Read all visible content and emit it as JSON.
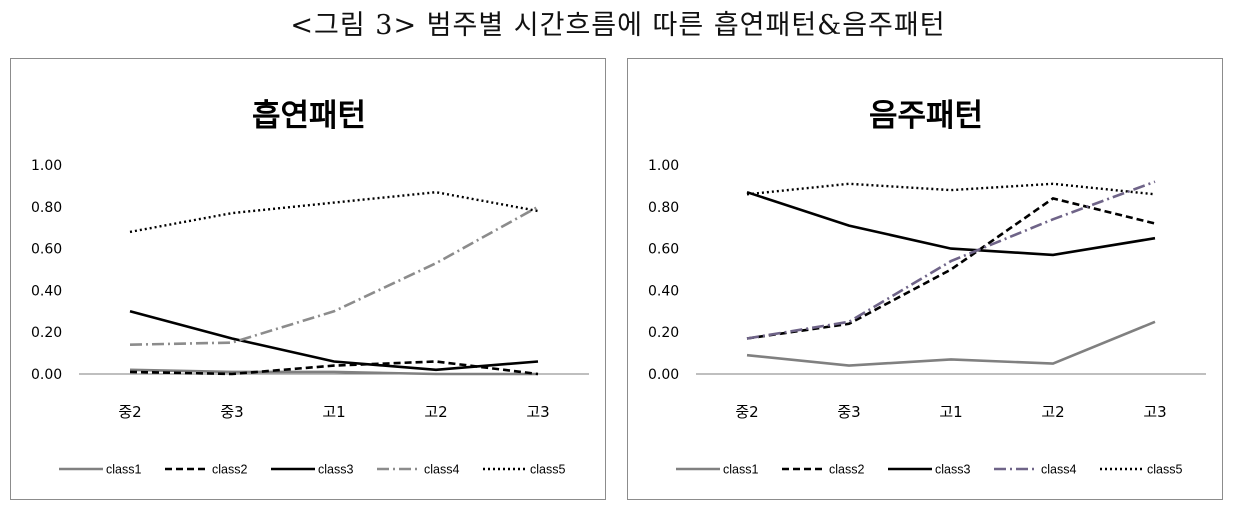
{
  "figure_title": "<그림 3> 범주별 시간흐름에 따른 흡연패턴&음주패턴",
  "chart_data": [
    {
      "type": "line",
      "title": "흡연패턴",
      "xlabel": "",
      "ylabel": "",
      "categories": [
        "중2",
        "중3",
        "고1",
        "고2",
        "고3"
      ],
      "ylim": [
        0,
        1
      ],
      "yticks": [
        "0.00",
        "0.20",
        "0.40",
        "0.60",
        "0.80",
        "1.00"
      ],
      "grid": false,
      "legend": "bottom",
      "series": [
        {
          "name": "class1",
          "values": [
            0.02,
            0.01,
            0.01,
            0.0,
            0.0
          ],
          "color": "#808080",
          "dash": "solid"
        },
        {
          "name": "class2",
          "values": [
            0.01,
            0.0,
            0.04,
            0.06,
            0.0
          ],
          "color": "#000000",
          "dash": "dashed"
        },
        {
          "name": "class3",
          "values": [
            0.3,
            0.17,
            0.06,
            0.02,
            0.06
          ],
          "color": "#000000",
          "dash": "solid"
        },
        {
          "name": "class4",
          "values": [
            0.14,
            0.15,
            0.3,
            0.53,
            0.8
          ],
          "color": "#8c8c8c",
          "dash": "dashdot"
        },
        {
          "name": "class5",
          "values": [
            0.68,
            0.77,
            0.82,
            0.87,
            0.78
          ],
          "color": "#000000",
          "dash": "dotted"
        }
      ]
    },
    {
      "type": "line",
      "title": "음주패턴",
      "xlabel": "",
      "ylabel": "",
      "categories": [
        "중2",
        "중3",
        "고1",
        "고2",
        "고3"
      ],
      "ylim": [
        0,
        1
      ],
      "yticks": [
        "0.00",
        "0.20",
        "0.40",
        "0.60",
        "0.80",
        "1.00"
      ],
      "grid": false,
      "legend": "bottom",
      "series": [
        {
          "name": "class1",
          "values": [
            0.09,
            0.04,
            0.07,
            0.05,
            0.25
          ],
          "color": "#808080",
          "dash": "solid"
        },
        {
          "name": "class2",
          "values": [
            0.17,
            0.24,
            0.5,
            0.84,
            0.72
          ],
          "color": "#000000",
          "dash": "dashed"
        },
        {
          "name": "class3",
          "values": [
            0.87,
            0.71,
            0.6,
            0.57,
            0.65
          ],
          "color": "#000000",
          "dash": "solid"
        },
        {
          "name": "class4",
          "values": [
            0.17,
            0.25,
            0.54,
            0.74,
            0.92
          ],
          "color": "#6f6488",
          "dash": "dashdot"
        },
        {
          "name": "class5",
          "values": [
            0.86,
            0.91,
            0.88,
            0.91,
            0.86
          ],
          "color": "#000000",
          "dash": "dotted"
        }
      ]
    }
  ]
}
